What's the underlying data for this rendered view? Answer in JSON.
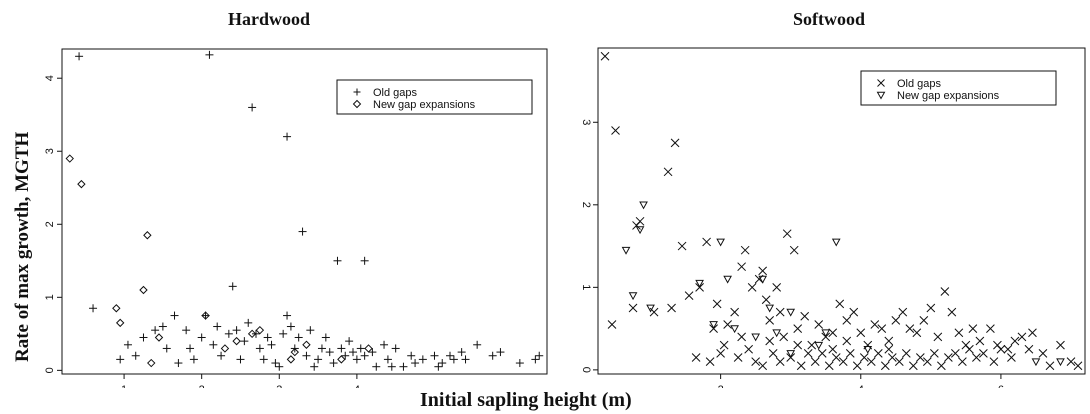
{
  "y_axis_label": "Rate of max growth, MGTH",
  "x_axis_label": "Initial sapling height (m)",
  "chart_data": [
    {
      "type": "scatter",
      "title": "Hardwood",
      "xlabel": "Initial sapling height (m)",
      "ylabel": "Rate of max growth, MGTH",
      "xlim": [
        0.2,
        6.45
      ],
      "ylim": [
        -0.05,
        4.4
      ],
      "xticks": [
        1,
        2,
        3,
        4
      ],
      "yticks": [
        0,
        1,
        2,
        3,
        4
      ],
      "ytick_labels": [
        "0",
        "1",
        "2",
        "3",
        "4"
      ],
      "legend_position": "top-right",
      "series": [
        {
          "name": "Old gaps",
          "marker": "plus",
          "color": "#000000",
          "points": [
            [
              0.42,
              4.3
            ],
            [
              2.1,
              4.32
            ],
            [
              2.65,
              3.6
            ],
            [
              3.1,
              3.2
            ],
            [
              3.3,
              1.9
            ],
            [
              3.75,
              1.5
            ],
            [
              4.1,
              1.5
            ],
            [
              2.4,
              1.15
            ],
            [
              0.6,
              0.85
            ],
            [
              0.95,
              0.15
            ],
            [
              1.15,
              0.2
            ],
            [
              1.25,
              0.45
            ],
            [
              1.4,
              0.55
            ],
            [
              1.5,
              0.6
            ],
            [
              1.65,
              0.75
            ],
            [
              1.8,
              0.55
            ],
            [
              1.85,
              0.3
            ],
            [
              2.0,
              0.45
            ],
            [
              2.05,
              0.75
            ],
            [
              2.15,
              0.35
            ],
            [
              2.2,
              0.6
            ],
            [
              2.25,
              0.2
            ],
            [
              2.35,
              0.5
            ],
            [
              2.45,
              0.55
            ],
            [
              2.55,
              0.4
            ],
            [
              2.6,
              0.65
            ],
            [
              2.7,
              0.5
            ],
            [
              2.75,
              0.3
            ],
            [
              2.8,
              0.15
            ],
            [
              2.9,
              0.35
            ],
            [
              2.95,
              0.1
            ],
            [
              3.05,
              0.5
            ],
            [
              3.1,
              0.75
            ],
            [
              3.15,
              0.6
            ],
            [
              3.2,
              0.3
            ],
            [
              3.25,
              0.45
            ],
            [
              3.35,
              0.2
            ],
            [
              3.4,
              0.55
            ],
            [
              3.5,
              0.15
            ],
            [
              3.55,
              0.3
            ],
            [
              3.6,
              0.45
            ],
            [
              3.65,
              0.25
            ],
            [
              3.7,
              0.1
            ],
            [
              3.8,
              0.3
            ],
            [
              3.85,
              0.2
            ],
            [
              3.9,
              0.4
            ],
            [
              3.95,
              0.25
            ],
            [
              4.0,
              0.15
            ],
            [
              4.05,
              0.3
            ],
            [
              4.1,
              0.2
            ],
            [
              4.2,
              0.25
            ],
            [
              4.25,
              0.05
            ],
            [
              4.35,
              0.35
            ],
            [
              4.4,
              0.15
            ],
            [
              4.5,
              0.3
            ],
            [
              4.6,
              0.05
            ],
            [
              4.7,
              0.2
            ],
            [
              4.75,
              0.1
            ],
            [
              4.85,
              0.15
            ],
            [
              5.0,
              0.2
            ],
            [
              5.1,
              0.1
            ],
            [
              5.2,
              0.2
            ],
            [
              5.25,
              0.15
            ],
            [
              5.35,
              0.25
            ],
            [
              5.4,
              0.15
            ],
            [
              5.55,
              0.35
            ],
            [
              5.75,
              0.2
            ],
            [
              5.85,
              0.25
            ],
            [
              6.1,
              0.1
            ],
            [
              6.3,
              0.15
            ],
            [
              6.35,
              0.2
            ],
            [
              1.05,
              0.35
            ],
            [
              1.55,
              0.3
            ],
            [
              1.7,
              0.1
            ],
            [
              2.5,
              0.15
            ],
            [
              3.0,
              0.05
            ],
            [
              3.45,
              0.05
            ],
            [
              4.45,
              0.05
            ],
            [
              5.05,
              0.05
            ],
            [
              2.85,
              0.45
            ],
            [
              1.9,
              0.15
            ]
          ]
        },
        {
          "name": "New gap expansions",
          "marker": "diamond",
          "color": "#000000",
          "points": [
            [
              0.3,
              2.9
            ],
            [
              0.45,
              2.55
            ],
            [
              1.3,
              1.85
            ],
            [
              1.25,
              1.1
            ],
            [
              0.9,
              0.85
            ],
            [
              0.95,
              0.65
            ],
            [
              1.45,
              0.45
            ],
            [
              1.35,
              0.1
            ],
            [
              2.05,
              0.75
            ],
            [
              2.45,
              0.4
            ],
            [
              2.65,
              0.5
            ],
            [
              2.75,
              0.55
            ],
            [
              3.2,
              0.25
            ],
            [
              3.35,
              0.35
            ],
            [
              3.15,
              0.15
            ],
            [
              4.15,
              0.3
            ],
            [
              2.3,
              0.3
            ],
            [
              3.8,
              0.15
            ]
          ]
        }
      ]
    },
    {
      "type": "scatter",
      "title": "Softwood",
      "xlabel": "Initial sapling height (m)",
      "ylabel": "",
      "xlim": [
        0.25,
        7.2
      ],
      "ylim": [
        -0.05,
        3.9
      ],
      "xticks": [
        2,
        4,
        6
      ],
      "yticks": [
        0,
        1,
        2,
        3
      ],
      "ytick_labels": [
        "0",
        "1",
        "2",
        "3"
      ],
      "legend_position": "top-right",
      "series": [
        {
          "name": "Old gaps",
          "marker": "x",
          "color": "#000000",
          "points": [
            [
              0.35,
              3.8
            ],
            [
              0.5,
              2.9
            ],
            [
              1.35,
              2.75
            ],
            [
              1.25,
              2.4
            ],
            [
              0.85,
              1.8
            ],
            [
              1.45,
              1.5
            ],
            [
              0.8,
              1.75
            ],
            [
              0.45,
              0.55
            ],
            [
              0.75,
              0.75
            ],
            [
              1.05,
              0.7
            ],
            [
              1.3,
              0.75
            ],
            [
              1.55,
              0.9
            ],
            [
              1.7,
              1.0
            ],
            [
              1.8,
              1.55
            ],
            [
              1.9,
              0.5
            ],
            [
              1.95,
              0.8
            ],
            [
              2.05,
              0.3
            ],
            [
              2.1,
              0.55
            ],
            [
              2.2,
              0.7
            ],
            [
              2.3,
              1.25
            ],
            [
              2.35,
              1.45
            ],
            [
              2.45,
              1.0
            ],
            [
              2.55,
              1.1
            ],
            [
              2.6,
              1.2
            ],
            [
              2.65,
              0.85
            ],
            [
              2.7,
              0.6
            ],
            [
              2.8,
              1.0
            ],
            [
              2.85,
              0.7
            ],
            [
              2.9,
              0.4
            ],
            [
              2.95,
              1.65
            ],
            [
              3.05,
              1.45
            ],
            [
              3.1,
              0.5
            ],
            [
              3.2,
              0.65
            ],
            [
              3.3,
              0.3
            ],
            [
              3.4,
              0.55
            ],
            [
              3.5,
              0.4
            ],
            [
              3.6,
              0.45
            ],
            [
              3.7,
              0.8
            ],
            [
              3.8,
              0.6
            ],
            [
              3.9,
              0.7
            ],
            [
              4.0,
              0.45
            ],
            [
              4.1,
              0.3
            ],
            [
              4.2,
              0.55
            ],
            [
              4.3,
              0.5
            ],
            [
              4.4,
              0.35
            ],
            [
              4.5,
              0.6
            ],
            [
              4.6,
              0.7
            ],
            [
              4.7,
              0.5
            ],
            [
              4.8,
              0.45
            ],
            [
              4.9,
              0.6
            ],
            [
              5.0,
              0.75
            ],
            [
              5.1,
              0.4
            ],
            [
              5.2,
              0.95
            ],
            [
              5.3,
              0.7
            ],
            [
              5.4,
              0.45
            ],
            [
              5.5,
              0.3
            ],
            [
              5.6,
              0.5
            ],
            [
              5.7,
              0.35
            ],
            [
              5.85,
              0.5
            ],
            [
              5.95,
              0.3
            ],
            [
              6.1,
              0.25
            ],
            [
              6.2,
              0.35
            ],
            [
              6.3,
              0.4
            ],
            [
              6.45,
              0.45
            ],
            [
              6.6,
              0.2
            ],
            [
              6.7,
              0.05
            ],
            [
              6.85,
              0.3
            ],
            [
              7.0,
              0.1
            ],
            [
              7.1,
              0.05
            ],
            [
              1.65,
              0.15
            ],
            [
              1.85,
              0.1
            ],
            [
              2.0,
              0.2
            ],
            [
              2.25,
              0.15
            ],
            [
              2.4,
              0.25
            ],
            [
              2.5,
              0.1
            ],
            [
              2.6,
              0.05
            ],
            [
              2.75,
              0.2
            ],
            [
              2.85,
              0.1
            ],
            [
              3.0,
              0.15
            ],
            [
              3.15,
              0.05
            ],
            [
              3.25,
              0.2
            ],
            [
              3.35,
              0.1
            ],
            [
              3.45,
              0.2
            ],
            [
              3.55,
              0.05
            ],
            [
              3.65,
              0.15
            ],
            [
              3.75,
              0.1
            ],
            [
              3.85,
              0.2
            ],
            [
              3.95,
              0.05
            ],
            [
              4.05,
              0.15
            ],
            [
              4.15,
              0.1
            ],
            [
              4.25,
              0.2
            ],
            [
              4.35,
              0.05
            ],
            [
              4.45,
              0.15
            ],
            [
              4.55,
              0.1
            ],
            [
              4.65,
              0.2
            ],
            [
              4.75,
              0.05
            ],
            [
              4.85,
              0.15
            ],
            [
              4.95,
              0.1
            ],
            [
              5.05,
              0.2
            ],
            [
              5.15,
              0.05
            ],
            [
              5.25,
              0.15
            ],
            [
              5.35,
              0.2
            ],
            [
              5.45,
              0.1
            ],
            [
              5.55,
              0.25
            ],
            [
              5.65,
              0.15
            ],
            [
              5.75,
              0.2
            ],
            [
              5.9,
              0.1
            ],
            [
              6.0,
              0.25
            ],
            [
              6.15,
              0.15
            ],
            [
              6.4,
              0.25
            ],
            [
              2.7,
              0.35
            ],
            [
              3.1,
              0.3
            ],
            [
              3.6,
              0.25
            ],
            [
              4.4,
              0.25
            ],
            [
              2.3,
              0.4
            ],
            [
              3.8,
              0.35
            ]
          ]
        },
        {
          "name": "New gap expansions",
          "marker": "triangle-down",
          "color": "#000000",
          "points": [
            [
              0.9,
              2.0
            ],
            [
              0.85,
              1.7
            ],
            [
              0.65,
              1.45
            ],
            [
              0.75,
              0.9
            ],
            [
              1.0,
              0.75
            ],
            [
              2.0,
              1.55
            ],
            [
              3.65,
              1.55
            ],
            [
              1.7,
              1.05
            ],
            [
              2.1,
              1.1
            ],
            [
              2.6,
              1.1
            ],
            [
              2.7,
              0.75
            ],
            [
              3.0,
              0.7
            ],
            [
              2.5,
              0.4
            ],
            [
              2.8,
              0.45
            ],
            [
              3.5,
              0.45
            ],
            [
              4.1,
              0.25
            ],
            [
              3.4,
              0.3
            ],
            [
              2.2,
              0.5
            ],
            [
              6.5,
              0.1
            ],
            [
              6.85,
              0.1
            ],
            [
              3.0,
              0.2
            ],
            [
              1.9,
              0.55
            ]
          ]
        }
      ]
    }
  ]
}
